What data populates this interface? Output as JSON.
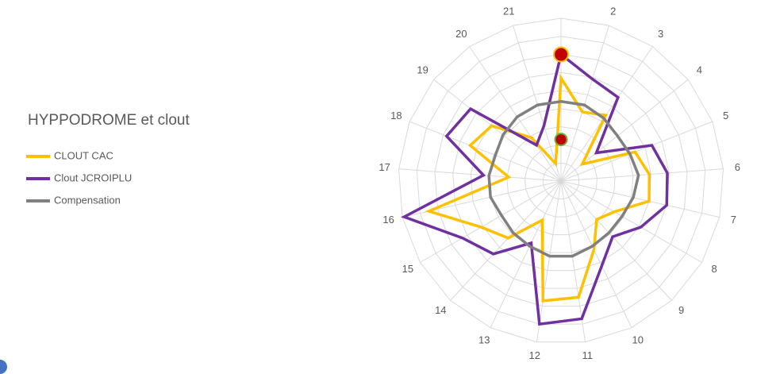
{
  "chart_data": {
    "type": "radar",
    "title": "HYPPODROME et clout",
    "categories": [
      null,
      "2",
      "3",
      "4",
      "5",
      "6",
      "7",
      "8",
      "9",
      "10",
      "11",
      "12",
      "13",
      "14",
      "15",
      "16",
      "17",
      "18",
      "19",
      "20",
      "21"
    ],
    "rlim": [
      0,
      9
    ],
    "rticks": [
      1,
      2,
      3,
      4,
      5,
      6,
      7,
      8,
      9
    ],
    "grid": true,
    "legend": "left",
    "series": [
      {
        "name": "CLOUT CAC",
        "color": "#ffc000",
        "values": [
          5.7,
          4.0,
          4.4,
          1.5,
          4.4,
          4.9,
          5.0,
          3.4,
          2.9,
          4.2,
          6.5,
          6.7,
          2.4,
          4.3,
          5.1,
          7.5,
          2.9,
          5.4,
          4.9,
          2.9,
          1.0
        ]
      },
      {
        "name": "Clout JCROIPLU",
        "color": "#7030a0",
        "values": [
          7.0,
          5.9,
          5.6,
          2.5,
          5.4,
          5.9,
          6.0,
          5.1,
          4.2,
          5.2,
          7.7,
          8.0,
          3.8,
          5.5,
          6.3,
          8.9,
          4.3,
          6.8,
          6.4,
          2.4,
          3.2
        ]
      },
      {
        "name": "Compensation",
        "color": "#808080",
        "values": [
          4.4,
          4.4,
          4.2,
          4.0,
          4.1,
          4.3,
          4.1,
          3.9,
          3.9,
          4.0,
          4.2,
          4.2,
          4.0,
          3.9,
          3.8,
          4.0,
          4.0,
          3.9,
          4.1,
          4.3,
          4.4
        ]
      }
    ],
    "highlights": [
      {
        "index": 0,
        "value": 7.0,
        "color": "#c00000",
        "stroke": "#ffc000"
      },
      {
        "index": 0,
        "value": 2.3,
        "color": "#c00000",
        "stroke": "#70ad47"
      }
    ]
  }
}
